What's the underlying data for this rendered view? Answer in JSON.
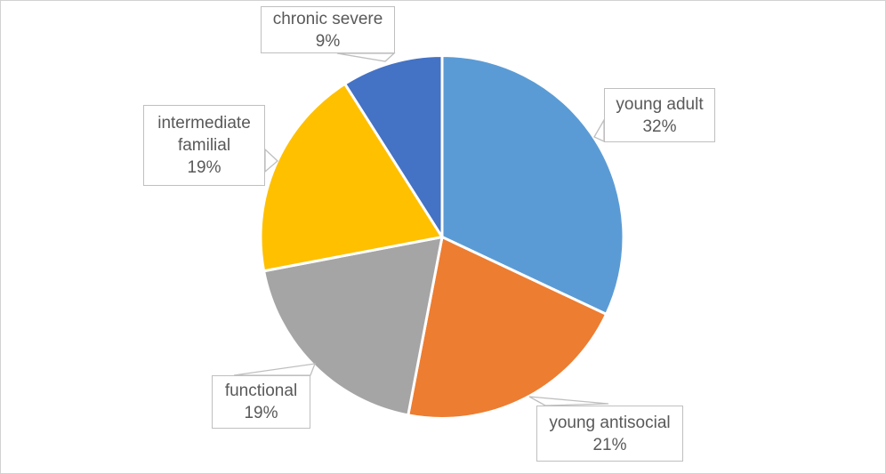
{
  "chart_data": {
    "type": "pie",
    "title": "",
    "legend": "none",
    "label_style": "callout-boxes-with-leader-pointers",
    "start_angle_deg": 0,
    "direction": "clockwise",
    "slice_border_color": "#ffffff",
    "callout_border_color": "#bfbfbf",
    "label_text_color": "#595959",
    "slices": [
      {
        "label": "young adult",
        "value": 32,
        "pct_label": "32%",
        "color": "#5B9BD5"
      },
      {
        "label": "young antisocial",
        "value": 21,
        "pct_label": "21%",
        "color": "#ED7D31"
      },
      {
        "label": "functional",
        "value": 19,
        "pct_label": "19%",
        "color": "#A5A5A5"
      },
      {
        "label": "intermediate familial",
        "value": 19,
        "pct_label": "19%",
        "color": "#FFC000"
      },
      {
        "label": "chronic severe",
        "value": 9,
        "pct_label": "9%",
        "color": "#4472C4"
      }
    ]
  }
}
